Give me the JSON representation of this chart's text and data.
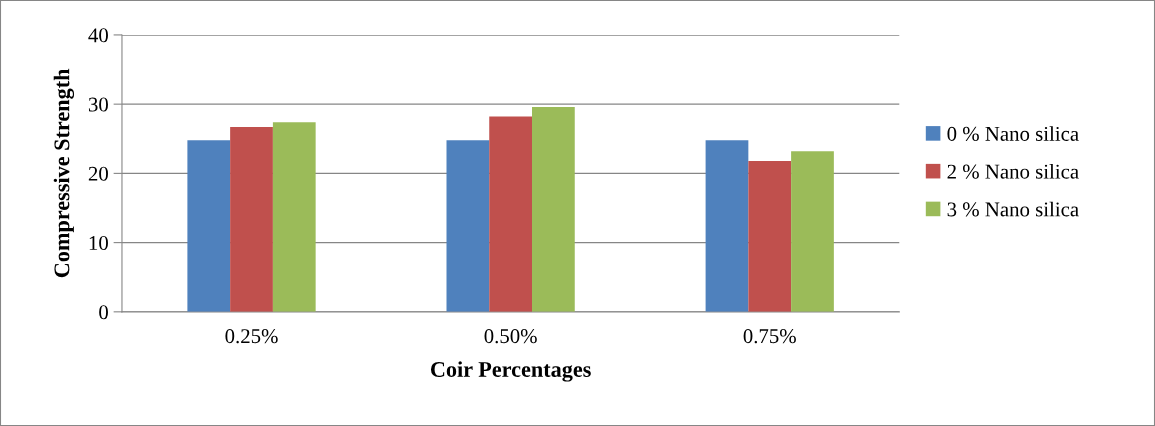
{
  "chart_data": {
    "type": "bar",
    "xlabel": "Coir Percentages",
    "ylabel": "Compressive Strength",
    "categories": [
      "0.25%",
      "0.50%",
      "0.75%"
    ],
    "series": [
      {
        "name": "0 % Nano silica",
        "color": "#4f81bd",
        "values": [
          24.8,
          24.8,
          24.8
        ]
      },
      {
        "name": "2 % Nano silica",
        "color": "#c0504d",
        "values": [
          26.7,
          28.2,
          21.8
        ]
      },
      {
        "name": "3 % Nano silica",
        "color": "#9bbb59",
        "values": [
          27.4,
          29.6,
          23.2
        ]
      }
    ],
    "ylim": [
      0,
      40
    ],
    "yticks": [
      0,
      10,
      20,
      30,
      40
    ],
    "grid": "y",
    "legend": "right"
  }
}
